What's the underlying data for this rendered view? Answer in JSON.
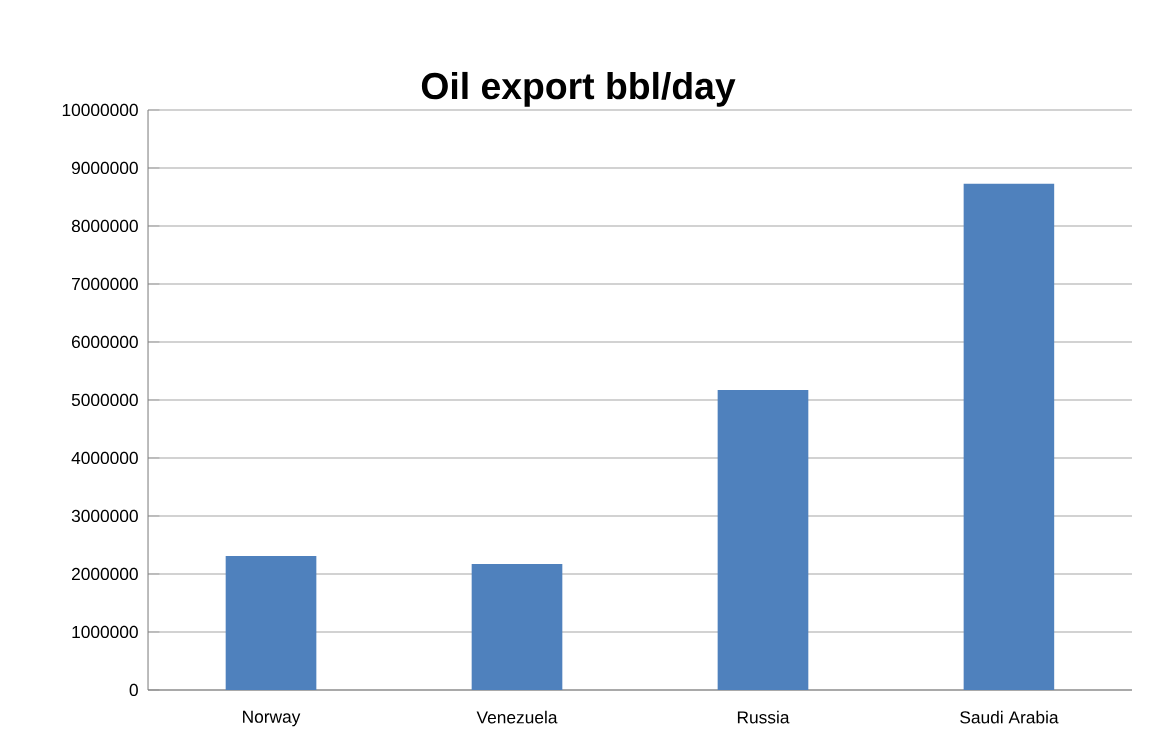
{
  "chart_data": {
    "type": "bar",
    "title": "Oil export bbl/day",
    "categories": [
      "Norway",
      "Venezuela",
      "Russia",
      "Saudi Arabia"
    ],
    "values": [
      2310000,
      2170000,
      5170000,
      8730000
    ],
    "color": "#4f81bd",
    "ylim": [
      0,
      10000000
    ],
    "yticks": [
      0,
      1000000,
      2000000,
      3000000,
      4000000,
      5000000,
      6000000,
      7000000,
      8000000,
      9000000,
      10000000
    ],
    "grid": true
  }
}
